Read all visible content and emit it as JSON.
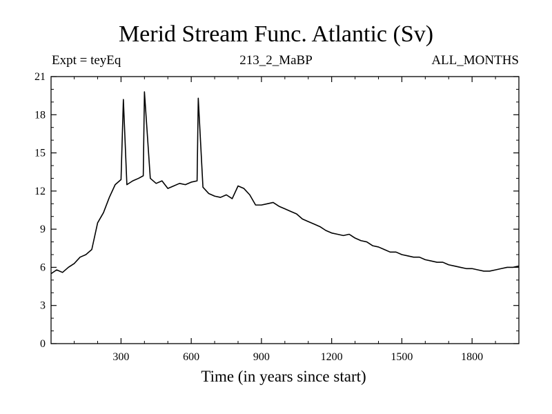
{
  "chart_data": {
    "type": "line",
    "title": "Merid Stream Func. Atlantic (Sv)",
    "subtitle_left": "Expt = teyEq",
    "subtitle_center": "213_2_MaBP",
    "subtitle_right": "ALL_MONTHS",
    "xlabel": "Time (in years since start)",
    "ylabel": "",
    "xlim": [
      1,
      2000
    ],
    "ylim": [
      0,
      21
    ],
    "xticks": [
      300,
      600,
      900,
      1200,
      1500,
      1800
    ],
    "yticks": [
      0,
      3,
      6,
      9,
      12,
      15,
      18,
      21
    ],
    "line_color": "#000000",
    "series": [
      {
        "name": "Merid Stream Func. Atlantic",
        "x": [
          1,
          25,
          50,
          75,
          100,
          125,
          150,
          175,
          200,
          225,
          250,
          275,
          300,
          310,
          325,
          350,
          375,
          395,
          400,
          425,
          450,
          475,
          500,
          525,
          550,
          575,
          600,
          625,
          630,
          650,
          675,
          700,
          725,
          750,
          775,
          800,
          825,
          850,
          875,
          900,
          925,
          950,
          975,
          1000,
          1025,
          1050,
          1075,
          1100,
          1125,
          1150,
          1175,
          1200,
          1225,
          1250,
          1275,
          1300,
          1325,
          1350,
          1375,
          1400,
          1425,
          1450,
          1475,
          1500,
          1525,
          1550,
          1575,
          1600,
          1625,
          1650,
          1675,
          1700,
          1725,
          1750,
          1775,
          1800,
          1825,
          1850,
          1875,
          1900,
          1925,
          1950,
          1975,
          2000
        ],
        "values": [
          5.5,
          5.8,
          5.6,
          6.0,
          6.3,
          6.8,
          7.0,
          7.4,
          9.5,
          10.3,
          11.5,
          12.5,
          12.9,
          19.2,
          12.5,
          12.8,
          13.0,
          13.2,
          19.8,
          13.0,
          12.6,
          12.8,
          12.2,
          12.4,
          12.6,
          12.5,
          12.7,
          12.8,
          19.3,
          12.3,
          11.8,
          11.6,
          11.5,
          11.7,
          11.4,
          12.4,
          12.2,
          11.7,
          10.9,
          10.9,
          11.0,
          11.1,
          10.8,
          10.6,
          10.4,
          10.2,
          9.8,
          9.6,
          9.4,
          9.2,
          8.9,
          8.7,
          8.6,
          8.5,
          8.6,
          8.3,
          8.1,
          8.0,
          7.7,
          7.6,
          7.4,
          7.2,
          7.2,
          7.0,
          6.9,
          6.8,
          6.8,
          6.6,
          6.5,
          6.4,
          6.4,
          6.2,
          6.1,
          6.0,
          5.9,
          5.9,
          5.8,
          5.7,
          5.7,
          5.8,
          5.9,
          6.0,
          6.0,
          6.1
        ]
      }
    ]
  }
}
